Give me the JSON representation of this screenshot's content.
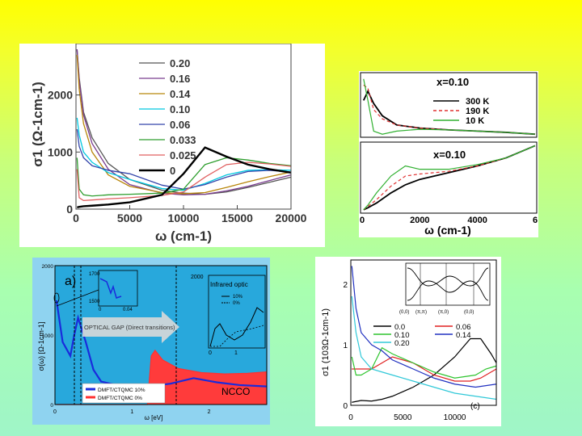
{
  "chart_data": [
    {
      "type": "line",
      "ylabel": "σ1 (Ω-1cm-1)",
      "xlabel": "ω (cm-1)",
      "x_ticks": [
        "0",
        "5000",
        "10000",
        "15000",
        "20000"
      ],
      "y_ticks": [
        "0",
        "1000",
        "2000"
      ],
      "xlim": [
        0,
        20000
      ],
      "ylim": [
        0,
        2900
      ],
      "series": [
        {
          "name": "0.20",
          "color": "#555555",
          "x": [
            100,
            300,
            700,
            1500,
            3000,
            5000,
            8000,
            10000,
            12000,
            14000,
            16000,
            18000,
            20000
          ],
          "y": [
            2800,
            2300,
            1700,
            1250,
            800,
            520,
            330,
            280,
            260,
            300,
            380,
            470,
            560
          ]
        },
        {
          "name": "0.16",
          "color": "#7a3d8f",
          "x": [
            100,
            300,
            700,
            1500,
            3000,
            5000,
            8000,
            10000,
            12000,
            14000,
            16000,
            18000,
            20000
          ],
          "y": [
            2800,
            2250,
            1650,
            1150,
            700,
            430,
            280,
            250,
            260,
            320,
            400,
            500,
            600
          ]
        },
        {
          "name": "0.14",
          "color": "#b8860b",
          "x": [
            100,
            300,
            700,
            1500,
            3000,
            5000,
            8000,
            10000,
            12000,
            14000,
            16000,
            18000,
            20000
          ],
          "y": [
            2700,
            2100,
            1500,
            1000,
            600,
            400,
            290,
            270,
            290,
            380,
            480,
            570,
            650
          ]
        },
        {
          "name": "0.10",
          "color": "#00c8e0",
          "x": [
            100,
            300,
            700,
            1500,
            3000,
            5000,
            8000,
            10000,
            12000,
            14000,
            16000,
            18000,
            20000
          ],
          "y": [
            1600,
            1300,
            1000,
            820,
            640,
            520,
            360,
            330,
            450,
            600,
            680,
            690,
            680
          ]
        },
        {
          "name": "0.06",
          "color": "#3344aa",
          "x": [
            100,
            300,
            700,
            1500,
            3000,
            5000,
            8000,
            10000,
            12000,
            14000,
            16000,
            18000,
            20000
          ],
          "y": [
            1400,
            1100,
            900,
            760,
            680,
            620,
            420,
            350,
            430,
            560,
            660,
            680,
            650
          ]
        },
        {
          "name": "0.033",
          "color": "#2e9e2e",
          "x": [
            100,
            300,
            700,
            1500,
            3000,
            5000,
            8000,
            10000,
            12000,
            14000,
            16000,
            18000,
            20000
          ],
          "y": [
            900,
            350,
            250,
            230,
            250,
            260,
            280,
            350,
            780,
            900,
            860,
            800,
            760
          ]
        },
        {
          "name": "0.025",
          "color": "#e06060",
          "x": [
            100,
            300,
            700,
            1500,
            3000,
            5000,
            8000,
            10000,
            12000,
            14000,
            16000,
            18000,
            20000
          ],
          "y": [
            700,
            200,
            150,
            160,
            180,
            200,
            240,
            300,
            560,
            780,
            820,
            790,
            750
          ]
        },
        {
          "name": "0",
          "color": "#000000",
          "x": [
            100,
            300,
            700,
            1500,
            3000,
            5000,
            8000,
            10000,
            12000,
            14000,
            16000,
            18000,
            20000
          ],
          "y": [
            30,
            40,
            50,
            60,
            80,
            120,
            250,
            620,
            1080,
            920,
            780,
            700,
            640
          ]
        }
      ],
      "legend": "top-right"
    },
    {
      "type": "line",
      "xlabel": "ω (cm-1)",
      "x_ticks": [
        "0",
        "2000",
        "4000",
        "6"
      ],
      "xlim": [
        0,
        6000
      ],
      "subplots": [
        {
          "title": "x=0.10",
          "series": [
            {
              "name": "300 K",
              "color": "#000000",
              "x": [
                50,
                200,
                400,
                700,
                1200,
                2000,
                3000,
                4000,
                5000,
                6000
              ],
              "y": [
                0.6,
                0.75,
                0.55,
                0.35,
                0.2,
                0.15,
                0.12,
                0.1,
                0.08,
                0.05
              ]
            },
            {
              "name": "190 K",
              "color": "#e03030",
              "x": [
                50,
                200,
                400,
                700,
                1200,
                2000,
                3000,
                4000,
                5000,
                6000
              ],
              "y": [
                0.85,
                0.8,
                0.45,
                0.3,
                0.2,
                0.15,
                0.12,
                0.1,
                0.08,
                0.05
              ]
            },
            {
              "name": "10 K",
              "color": "#30b030",
              "x": [
                50,
                200,
                400,
                700,
                1200,
                2000,
                3000,
                4000,
                5000,
                6000
              ],
              "y": [
                0.95,
                0.6,
                0.1,
                0.05,
                0.1,
                0.13,
                0.12,
                0.1,
                0.08,
                0.05
              ]
            }
          ]
        },
        {
          "title": "x=0.10",
          "series": [
            {
              "name": "300 K",
              "color": "#000000",
              "x": [
                50,
                200,
                500,
                1000,
                1500,
                2000,
                3000,
                4000,
                5000,
                6000
              ],
              "y": [
                0.05,
                0.08,
                0.15,
                0.3,
                0.42,
                0.5,
                0.6,
                0.7,
                0.82,
                1.0
              ]
            },
            {
              "name": "190 K",
              "color": "#e03030",
              "x": [
                50,
                200,
                500,
                1000,
                1500,
                2000,
                3000,
                4000,
                5000,
                6000
              ],
              "y": [
                0.05,
                0.1,
                0.2,
                0.4,
                0.55,
                0.58,
                0.62,
                0.7,
                0.82,
                1.0
              ]
            },
            {
              "name": "10 K",
              "color": "#30b030",
              "x": [
                50,
                200,
                500,
                1000,
                1500,
                2000,
                3000,
                4000,
                5000,
                6000
              ],
              "y": [
                0.05,
                0.12,
                0.3,
                0.55,
                0.7,
                0.65,
                0.65,
                0.72,
                0.82,
                1.0
              ]
            }
          ]
        }
      ]
    },
    {
      "type": "line",
      "ylabel": "σ(ω)  [Ω-1cm-1]",
      "xlabel": "ω  [eV]",
      "x_ticks": [
        "0",
        "1",
        "2"
      ],
      "y_ticks": [
        "0",
        "1000",
        "2000"
      ],
      "xlim": [
        0,
        2.75
      ],
      "ylim": [
        0,
        2000
      ],
      "series": [
        {
          "name": "DMFT/CTQMC 10%",
          "color": "#1a2bdc",
          "x": [
            0.02,
            0.1,
            0.2,
            0.25,
            0.3,
            0.4,
            0.5,
            0.6,
            0.8,
            1.0,
            1.2,
            1.5,
            1.8,
            2.1,
            2.4,
            2.75
          ],
          "y": [
            1500,
            900,
            700,
            1000,
            1250,
            900,
            500,
            330,
            280,
            250,
            260,
            300,
            380,
            320,
            280,
            260
          ]
        },
        {
          "name": "DMFT/CTQMC 0%",
          "color": "#ff3030",
          "x": [
            0.02,
            0.5,
            1.0,
            1.2,
            1.25,
            1.3,
            1.4,
            1.6,
            1.9,
            2.2,
            2.5,
            2.75
          ],
          "y": [
            0,
            0,
            0,
            0,
            700,
            780,
            640,
            520,
            460,
            440,
            450,
            470
          ]
        }
      ],
      "annotations": {
        "panel_label": "a)",
        "gap_arrow": "OPTICAL GAP (Direct transitions)",
        "region_label": "NCCO",
        "inset_title": "Infrared optic",
        "inset_legend": [
          "10%",
          "0%"
        ],
        "inset_y_label": "2000",
        "inset_x_ticks": [
          "0",
          "1"
        ],
        "small_inset_y_ticks": [
          "1700",
          "1500"
        ],
        "small_inset_x_ticks": [
          "0",
          "0.04"
        ]
      },
      "legend": "bottom-left"
    },
    {
      "type": "line",
      "ylabel": "σ1 (103Ω-1cm-1)",
      "x_ticks": [
        "0",
        "5000",
        "10000"
      ],
      "y_ticks": [
        "0",
        "1",
        "2"
      ],
      "xlim": [
        0,
        14000
      ],
      "ylim": [
        0,
        2.4
      ],
      "panel_label": "(c)",
      "inset_x_ticks": [
        "(0,0)",
        "(π,π)",
        "(π,0)",
        "(0,0)"
      ],
      "series": [
        {
          "name": "0.0",
          "color": "#000000",
          "x": [
            100,
            1000,
            2000,
            3000,
            4000,
            6000,
            8000,
            10000,
            11500,
            12500,
            13500,
            14000
          ],
          "y": [
            0.05,
            0.08,
            0.07,
            0.1,
            0.15,
            0.3,
            0.5,
            0.8,
            1.1,
            1.1,
            0.85,
            0.7
          ]
        },
        {
          "name": "0.06",
          "color": "#e02020",
          "x": [
            100,
            1000,
            2000,
            3000,
            4000,
            6000,
            8000,
            10000,
            11500,
            12500,
            13500,
            14000
          ],
          "y": [
            0.6,
            0.6,
            0.6,
            0.7,
            0.8,
            0.7,
            0.5,
            0.4,
            0.4,
            0.45,
            0.55,
            0.6
          ]
        },
        {
          "name": "0.10",
          "color": "#2ec42e",
          "x": [
            100,
            500,
            1000,
            2000,
            3000,
            4000,
            6000,
            8000,
            10000,
            12000,
            13000,
            14000
          ],
          "y": [
            0.8,
            0.5,
            0.5,
            0.6,
            0.95,
            0.85,
            0.7,
            0.55,
            0.45,
            0.5,
            0.6,
            0.65
          ]
        },
        {
          "name": "0.14",
          "color": "#2030c0",
          "x": [
            100,
            500,
            1000,
            2000,
            3000,
            4000,
            6000,
            8000,
            10000,
            12000,
            14000
          ],
          "y": [
            2.3,
            1.6,
            1.2,
            1.0,
            0.9,
            0.75,
            0.6,
            0.45,
            0.35,
            0.3,
            0.35
          ]
        },
        {
          "name": "0.20",
          "color": "#30c8d8",
          "x": [
            100,
            500,
            1000,
            2000,
            3000,
            4000,
            6000,
            8000,
            10000,
            12000,
            14000
          ],
          "y": [
            1.8,
            1.2,
            0.8,
            0.6,
            0.55,
            0.5,
            0.4,
            0.3,
            0.2,
            0.15,
            0.1
          ]
        }
      ],
      "legend": "center"
    }
  ]
}
